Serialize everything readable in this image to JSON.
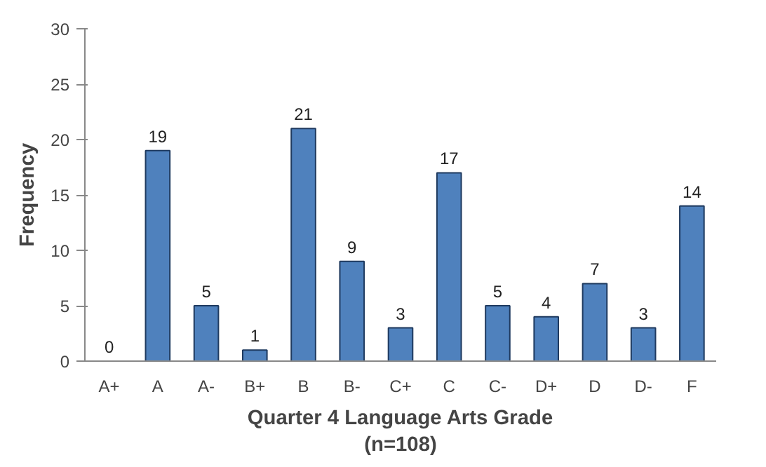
{
  "chart_data": {
    "type": "bar",
    "xlabel": "Quarter 4 Language Arts Grade\n(n=108)",
    "ylabel": "Frequency",
    "categories": [
      "A+",
      "A",
      "A-",
      "B+",
      "B",
      "B-",
      "C+",
      "C",
      "C-",
      "D+",
      "D",
      "D-",
      "F"
    ],
    "values": [
      0,
      19,
      5,
      1,
      21,
      9,
      3,
      17,
      5,
      4,
      7,
      3,
      14
    ],
    "color": "#4f81bd",
    "ylim": [
      0,
      30
    ],
    "yticks": [
      0,
      5,
      10,
      15,
      20,
      25,
      30
    ],
    "grid": false,
    "data_labels": true
  }
}
